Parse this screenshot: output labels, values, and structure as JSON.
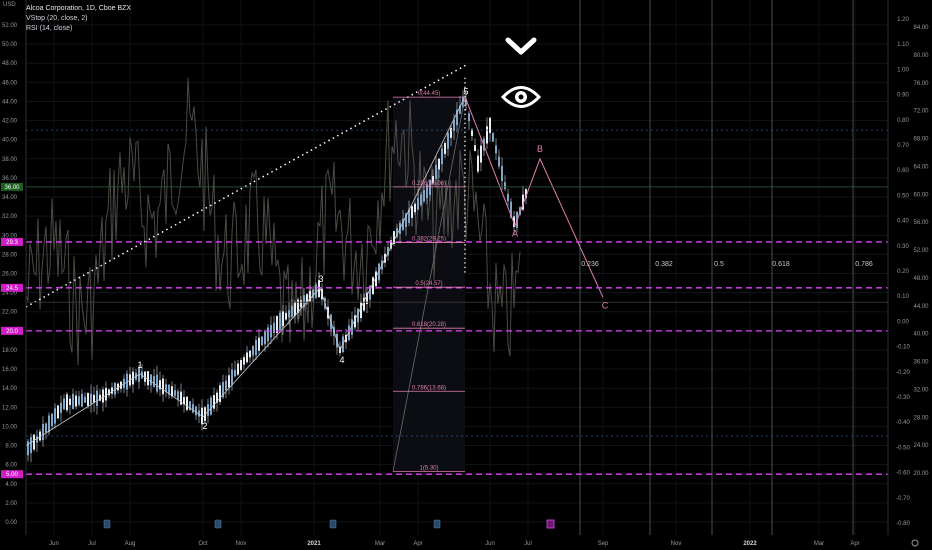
{
  "legend": {
    "symbol": "Alcoa Corporation, 1D, Cboe BZX",
    "indicator1": "VStop (20, close, 2)",
    "indicator2": "RSI (14, close)"
  },
  "currency_label": "USD",
  "chart_data": {
    "type": "line",
    "title": "Alcoa Corporation, 1D, Cboe BZX",
    "x_ticks": [
      "Jun",
      "Jul",
      "Aug",
      "Oct",
      "Nov",
      "2021",
      "Mar",
      "Apr",
      "Jun",
      "Jul",
      "Sep",
      "Nov",
      "2022",
      "Mar",
      "Apr"
    ],
    "left_axis": {
      "label": "USD",
      "ylim": [
        -0.5,
        53.5
      ],
      "ticks": [
        "0.00",
        "2.00",
        "4.00",
        "6.00",
        "8.00",
        "10.00",
        "12.00",
        "14.00",
        "16.00",
        "18.00",
        "20.00",
        "22.00",
        "24.00",
        "26.00",
        "28.00",
        "30.00",
        "32.00",
        "34.00",
        "36.00",
        "38.00",
        "40.00",
        "42.00",
        "44.00",
        "46.00",
        "48.00",
        "50.00",
        "52.00"
      ],
      "badges": [
        "36.00",
        "29.3",
        "24.5",
        "20.0",
        "5.00"
      ]
    },
    "right_axis_1": {
      "ticks": [
        "1.20",
        "1.10",
        "1.00",
        "0.90",
        "0.80",
        "0.70",
        "0.60",
        "0.50",
        "0.40",
        "0.30",
        "0.20",
        "0.10",
        "0.00",
        "-0.10",
        "-0.20",
        "-0.30",
        "-0.40",
        "-0.50",
        "-0.60",
        "-0.70",
        "-0.80"
      ]
    },
    "right_axis_2": {
      "ticks": [
        "84.00",
        "80.00",
        "76.00",
        "72.00",
        "68.00",
        "64.00",
        "60.00",
        "56.00",
        "52.00",
        "48.00",
        "44.00",
        "40.00",
        "36.00",
        "32.00",
        "28.00",
        "24.00",
        "20.00"
      ]
    },
    "elliott_wave_labels": [
      "1",
      "2",
      "3",
      "4",
      "5"
    ],
    "correction_labels": [
      "A",
      "B",
      "C"
    ],
    "fib_retracement": [
      {
        "label": "0(44.45)",
        "price": 44.45
      },
      {
        "label": "0.236(35.06)",
        "price": 35.06
      },
      {
        "label": "0.382(29.25)",
        "price": 29.25
      },
      {
        "label": "0.5(24.57)",
        "price": 24.57
      },
      {
        "label": "0.618(20.28)",
        "price": 20.28
      },
      {
        "label": "0.786(13.68)",
        "price": 13.68
      },
      {
        "label": "1(5.30)",
        "price": 5.3
      }
    ],
    "fib_extension_labels": [
      "0.236",
      "0.382",
      "0.5",
      "0.618",
      "0.786"
    ],
    "horizontal_levels": [
      29.3,
      24.5,
      20.0,
      5.0
    ],
    "price_line": 35.06,
    "series": [
      {
        "x": [
          "2020-05",
          "2020-06",
          "2020-07",
          "2020-08",
          "2020-09",
          "2020-10",
          "2020-11",
          "2020-12",
          "2021-01",
          "2021-02",
          "2021-03",
          "2021-04",
          "2021-05",
          "2021-06",
          "2021-07"
        ],
        "values": [
          7.5,
          9.5,
          12.5,
          15.0,
          13.5,
          11.5,
          17.0,
          21.0,
          24.0,
          18.0,
          26.0,
          34.0,
          44.5,
          37.0,
          33.0
        ]
      }
    ],
    "projection_path_labels": [
      "A",
      "B",
      "C"
    ],
    "grid": true
  }
}
